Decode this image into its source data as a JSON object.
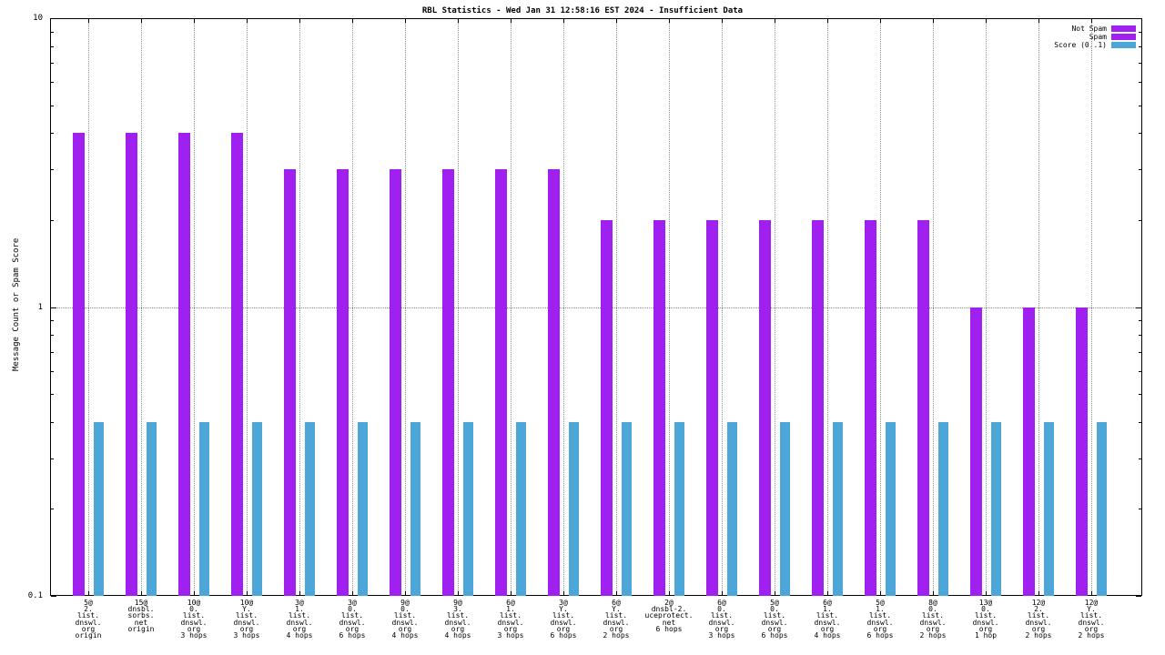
{
  "title": "RBL Statistics - Wed Jan 31 12:58:16 EST 2024 - Insufficient Data",
  "ylabel": "Message Count or Spam Score",
  "legend": [
    {
      "label": "Not Spam",
      "color": "#a020f0"
    },
    {
      "label": "Spam",
      "color": "#a020f0"
    },
    {
      "label": "Score (0..1)",
      "color": "#4da6d8"
    }
  ],
  "colors": {
    "not_spam": "#a020f0",
    "spam": "#a020f0",
    "score": "#4da6d8",
    "grid": "#8a8a8a",
    "axis": "#000000"
  },
  "chart_data": {
    "type": "bar",
    "scale": "log",
    "ylim": [
      0.1,
      10
    ],
    "grid": true,
    "legend_position": "top-right",
    "yticks": [
      {
        "label": "10",
        "value": 10
      },
      {
        "label": "1",
        "value": 1
      },
      {
        "label": "0.1",
        "value": 0.1
      }
    ],
    "categories": [
      [
        "5@",
        "2.",
        "list.",
        "dnswl.",
        "org",
        "origin"
      ],
      [
        "15@",
        "dnsbl.",
        "sorbs.",
        "net",
        "origin"
      ],
      [
        "10@",
        "0.",
        "list.",
        "dnswl.",
        "org",
        "3 hops"
      ],
      [
        "10@",
        "Y.",
        "list.",
        "dnswl.",
        "org",
        "3 hops"
      ],
      [
        "3@",
        "1.",
        "list.",
        "dnswl.",
        "org",
        "4 hops"
      ],
      [
        "3@",
        "0.",
        "list.",
        "dnswl.",
        "org",
        "6 hops"
      ],
      [
        "9@",
        "0.",
        "list.",
        "dnswl.",
        "org",
        "4 hops"
      ],
      [
        "9@",
        "3.",
        "list.",
        "dnswl.",
        "org",
        "4 hops"
      ],
      [
        "6@",
        "1.",
        "list.",
        "dnswl.",
        "org",
        "3 hops"
      ],
      [
        "3@",
        "Y.",
        "list.",
        "dnswl.",
        "org",
        "6 hops"
      ],
      [
        "6@",
        "Y.",
        "list.",
        "dnswl.",
        "org",
        "2 hops"
      ],
      [
        "2@",
        "dnsbl-2.",
        "uceprotect.",
        "net",
        "6 hops"
      ],
      [
        "6@",
        "0.",
        "list.",
        "dnswl.",
        "org",
        "3 hops"
      ],
      [
        "5@",
        "0.",
        "list.",
        "dnswl.",
        "org",
        "6 hops"
      ],
      [
        "6@",
        "1.",
        "list.",
        "dnswl.",
        "org",
        "4 hops"
      ],
      [
        "5@",
        "1.",
        "list.",
        "dnswl.",
        "org",
        "6 hops"
      ],
      [
        "8@",
        "0.",
        "list.",
        "dnswl.",
        "org",
        "2 hops"
      ],
      [
        "13@",
        "0.",
        "list.",
        "dnswl.",
        "org",
        "1 hop"
      ],
      [
        "12@",
        "2.",
        "list.",
        "dnswl.",
        "org",
        "2 hops"
      ],
      [
        "12@",
        "Y.",
        "list.",
        "dnswl.",
        "org",
        "2 hops"
      ]
    ],
    "series": [
      {
        "name": "Not Spam",
        "color": "#a020f0",
        "values": [
          4,
          4,
          4,
          4,
          3,
          3,
          3,
          3,
          3,
          3,
          2,
          2,
          2,
          2,
          2,
          2,
          2,
          1,
          1,
          1
        ]
      },
      {
        "name": "Spam",
        "color": "#a020f0",
        "values": [
          0,
          0,
          0,
          0,
          0,
          0,
          0,
          0,
          0,
          0,
          0,
          0,
          0,
          0,
          0,
          0,
          0,
          0,
          0,
          0
        ]
      },
      {
        "name": "Score (0..1)",
        "color": "#4da6d8",
        "values": [
          0.4,
          0.4,
          0.4,
          0.4,
          0.4,
          0.4,
          0.4,
          0.4,
          0.4,
          0.4,
          0.4,
          0.4,
          0.4,
          0.4,
          0.4,
          0.4,
          0.4,
          0.4,
          0.4,
          0.4
        ]
      }
    ]
  }
}
